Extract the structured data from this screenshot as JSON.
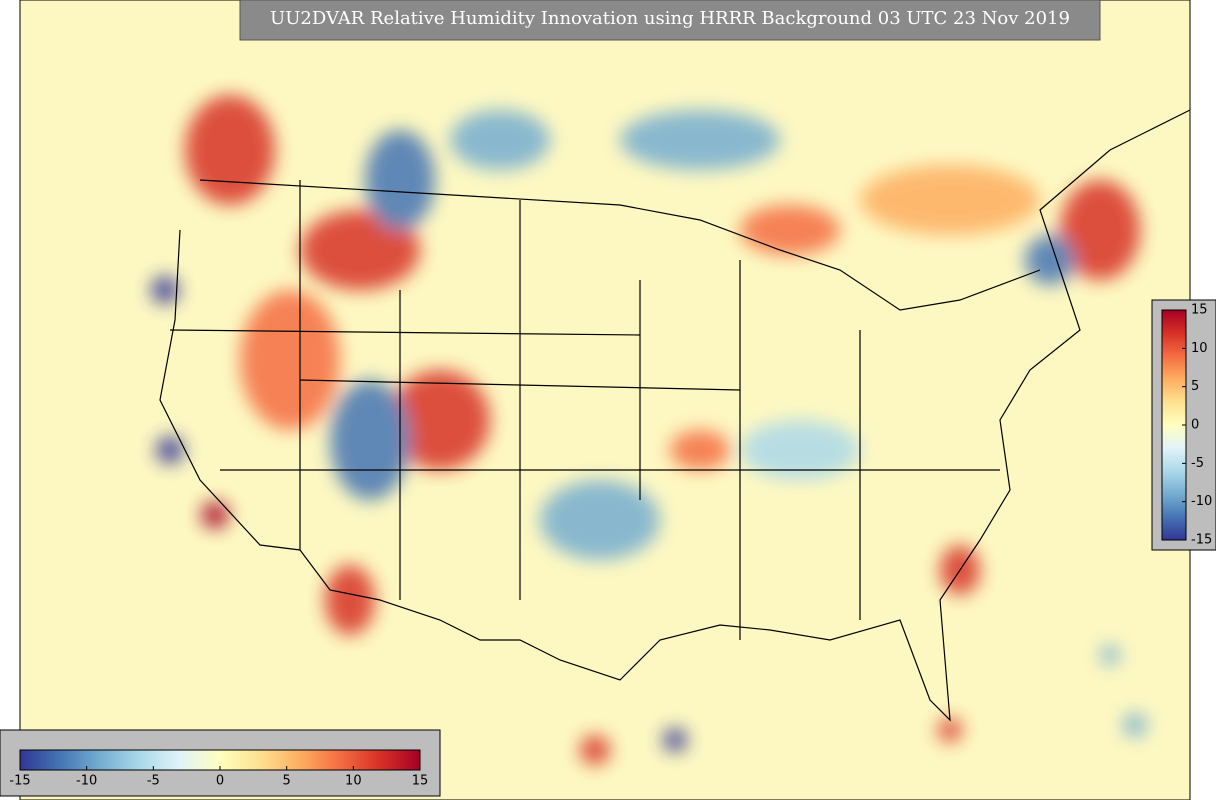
{
  "title": "UU2DVAR Relative Humidity Innovation using HRRR Background 03 UTC 23 Nov 2019",
  "colormap": [
    "#313695",
    "#4575b4",
    "#74add1",
    "#abd9e9",
    "#e0f3f8",
    "#ffffbf",
    "#fee090",
    "#fdae61",
    "#f46d43",
    "#d73027",
    "#a50026"
  ],
  "colorbars": [
    {
      "orientation": "horizontal",
      "range": [
        -15,
        15
      ],
      "ticks": [
        -15,
        -10,
        -5,
        0,
        5,
        10,
        15
      ]
    },
    {
      "orientation": "vertical",
      "range": [
        -15,
        15
      ],
      "ticks": [
        -15,
        -10,
        -5,
        0,
        5,
        10,
        15
      ]
    }
  ]
}
